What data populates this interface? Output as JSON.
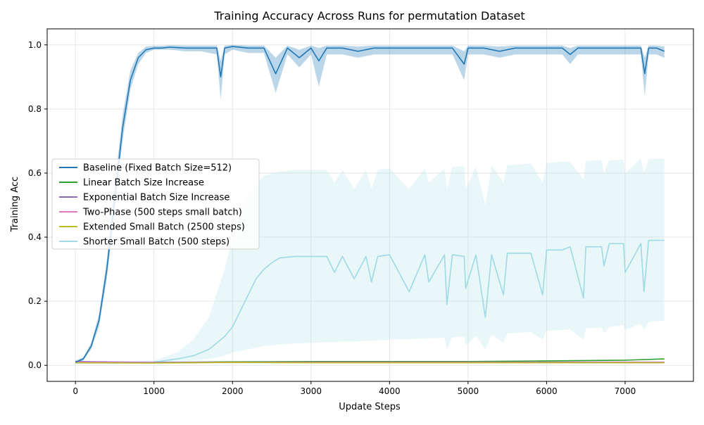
{
  "chart_data": {
    "type": "line",
    "title": "Training Accuracy Across Runs for permutation Dataset",
    "xlabel": "Update Steps",
    "ylabel": "Training Acc",
    "xlim": [
      -360,
      7870
    ],
    "ylim": [
      -0.05,
      1.05
    ],
    "xticks": [
      0,
      1000,
      2000,
      3000,
      4000,
      5000,
      6000,
      7000
    ],
    "yticks": [
      0.0,
      0.2,
      0.4,
      0.6,
      0.8,
      1.0
    ],
    "xtick_labels": [
      "0",
      "1000",
      "2000",
      "3000",
      "4000",
      "5000",
      "6000",
      "7000"
    ],
    "ytick_labels": [
      "0.0",
      "0.2",
      "0.4",
      "0.6",
      "0.8",
      "1.0"
    ],
    "grid": true,
    "legend_position": "center-left",
    "series": [
      {
        "name": "Baseline (Fixed Batch Size=512)",
        "color": "#1f77b4",
        "x": [
          0,
          100,
          200,
          300,
          400,
          500,
          600,
          700,
          800,
          900,
          1000,
          1100,
          1200,
          1400,
          1600,
          1800,
          1850,
          1900,
          2000,
          2200,
          2400,
          2550,
          2700,
          2850,
          3000,
          3100,
          3200,
          3400,
          3600,
          3800,
          4000,
          4200,
          4400,
          4600,
          4800,
          4950,
          5000,
          5200,
          5400,
          5600,
          5800,
          6000,
          6200,
          6300,
          6400,
          6600,
          6800,
          7000,
          7200,
          7250,
          7300,
          7400,
          7500
        ],
        "y": [
          0.01,
          0.02,
          0.06,
          0.14,
          0.3,
          0.52,
          0.74,
          0.89,
          0.96,
          0.985,
          0.99,
          0.99,
          0.993,
          0.99,
          0.99,
          0.99,
          0.9,
          0.99,
          0.995,
          0.99,
          0.99,
          0.91,
          0.99,
          0.96,
          0.99,
          0.95,
          0.99,
          0.99,
          0.98,
          0.99,
          0.99,
          0.99,
          0.99,
          0.99,
          0.99,
          0.94,
          0.99,
          0.99,
          0.98,
          0.99,
          0.99,
          0.99,
          0.99,
          0.97,
          0.99,
          0.99,
          0.99,
          0.99,
          0.99,
          0.91,
          0.99,
          0.99,
          0.98
        ],
        "band_lower": [
          0.005,
          0.015,
          0.05,
          0.12,
          0.27,
          0.48,
          0.7,
          0.86,
          0.94,
          0.975,
          0.985,
          0.985,
          0.985,
          0.98,
          0.98,
          0.97,
          0.83,
          0.97,
          0.985,
          0.975,
          0.975,
          0.85,
          0.97,
          0.93,
          0.97,
          0.87,
          0.97,
          0.97,
          0.96,
          0.97,
          0.97,
          0.97,
          0.97,
          0.97,
          0.97,
          0.89,
          0.97,
          0.97,
          0.96,
          0.97,
          0.97,
          0.97,
          0.97,
          0.94,
          0.97,
          0.97,
          0.97,
          0.97,
          0.97,
          0.84,
          0.97,
          0.97,
          0.96
        ],
        "band_upper": [
          0.015,
          0.025,
          0.07,
          0.16,
          0.33,
          0.56,
          0.78,
          0.92,
          0.975,
          0.995,
          0.997,
          0.997,
          0.999,
          0.998,
          0.998,
          0.998,
          0.95,
          0.998,
          1.0,
          0.998,
          0.998,
          0.96,
          0.998,
          0.985,
          0.998,
          0.99,
          0.998,
          0.998,
          0.995,
          0.998,
          0.998,
          0.998,
          0.998,
          0.998,
          0.998,
          0.98,
          0.998,
          0.998,
          0.995,
          0.998,
          0.998,
          0.998,
          0.998,
          0.99,
          0.998,
          0.998,
          0.998,
          0.998,
          0.998,
          0.96,
          0.998,
          0.998,
          0.995
        ]
      },
      {
        "name": "Linear Batch Size Increase",
        "color": "#2ca02c",
        "x": [
          0,
          1000,
          2000,
          3000,
          4000,
          5000,
          6000,
          7000,
          7500
        ],
        "y": [
          0.01,
          0.009,
          0.011,
          0.012,
          0.012,
          0.012,
          0.014,
          0.016,
          0.02
        ]
      },
      {
        "name": "Exponential Batch Size Increase",
        "color": "#9467bd",
        "x": [
          0,
          1000,
          2000,
          3000,
          4000,
          5000,
          6000,
          7000,
          7500
        ],
        "y": [
          0.012,
          0.009,
          0.01,
          0.01,
          0.01,
          0.01,
          0.01,
          0.01,
          0.01
        ]
      },
      {
        "name": "Two-Phase (500 steps small batch)",
        "color": "#e377c2",
        "x": [
          0,
          1000,
          2000,
          3000,
          4000,
          5000,
          6000,
          7000,
          7500
        ],
        "y": [
          0.01,
          0.008,
          0.009,
          0.009,
          0.009,
          0.009,
          0.009,
          0.009,
          0.009
        ]
      },
      {
        "name": "Extended Small Batch (2500 steps)",
        "color": "#bcbd22",
        "x": [
          0,
          1000,
          2000,
          3000,
          4000,
          5000,
          6000,
          7000,
          7500
        ],
        "y": [
          0.008,
          0.007,
          0.009,
          0.008,
          0.008,
          0.008,
          0.008,
          0.008,
          0.008
        ]
      },
      {
        "name": "Shorter Small Batch (500 steps)",
        "color": "#9edae5",
        "x": [
          0,
          500,
          1000,
          1300,
          1500,
          1700,
          1900,
          2000,
          2100,
          2200,
          2300,
          2400,
          2500,
          2600,
          2800,
          3000,
          3200,
          3300,
          3400,
          3550,
          3700,
          3770,
          3850,
          4000,
          4250,
          4450,
          4500,
          4700,
          4730,
          4800,
          4950,
          4970,
          5100,
          5220,
          5300,
          5450,
          5500,
          5700,
          5800,
          5950,
          6000,
          6200,
          6300,
          6470,
          6500,
          6700,
          6730,
          6800,
          6980,
          7000,
          7200,
          7240,
          7300,
          7400,
          7500
        ],
        "y": [
          0.008,
          0.008,
          0.01,
          0.02,
          0.03,
          0.05,
          0.09,
          0.12,
          0.17,
          0.22,
          0.27,
          0.3,
          0.32,
          0.335,
          0.34,
          0.34,
          0.34,
          0.29,
          0.34,
          0.27,
          0.34,
          0.26,
          0.34,
          0.345,
          0.23,
          0.345,
          0.26,
          0.345,
          0.19,
          0.345,
          0.34,
          0.24,
          0.345,
          0.15,
          0.345,
          0.22,
          0.35,
          0.35,
          0.35,
          0.22,
          0.36,
          0.36,
          0.37,
          0.21,
          0.37,
          0.37,
          0.31,
          0.38,
          0.38,
          0.29,
          0.38,
          0.23,
          0.39,
          0.39,
          0.39
        ],
        "band_lower": [
          0.004,
          0.004,
          0.006,
          0.01,
          0.015,
          0.02,
          0.03,
          0.04,
          0.045,
          0.05,
          0.055,
          0.06,
          0.062,
          0.065,
          0.068,
          0.07,
          0.072,
          0.072,
          0.074,
          0.074,
          0.076,
          0.076,
          0.078,
          0.08,
          0.082,
          0.084,
          0.084,
          0.086,
          0.05,
          0.088,
          0.09,
          0.06,
          0.092,
          0.05,
          0.095,
          0.07,
          0.1,
          0.102,
          0.104,
          0.08,
          0.108,
          0.11,
          0.112,
          0.08,
          0.115,
          0.118,
          0.1,
          0.12,
          0.125,
          0.11,
          0.13,
          0.11,
          0.135,
          0.138,
          0.14
        ],
        "band_upper": [
          0.012,
          0.012,
          0.015,
          0.04,
          0.08,
          0.15,
          0.3,
          0.4,
          0.48,
          0.53,
          0.57,
          0.59,
          0.6,
          0.605,
          0.61,
          0.61,
          0.61,
          0.57,
          0.61,
          0.55,
          0.61,
          0.55,
          0.61,
          0.615,
          0.55,
          0.615,
          0.57,
          0.615,
          0.55,
          0.62,
          0.62,
          0.55,
          0.62,
          0.5,
          0.625,
          0.57,
          0.625,
          0.628,
          0.63,
          0.57,
          0.632,
          0.635,
          0.635,
          0.58,
          0.638,
          0.64,
          0.6,
          0.64,
          0.642,
          0.6,
          0.645,
          0.6,
          0.645,
          0.645,
          0.645
        ]
      }
    ]
  }
}
